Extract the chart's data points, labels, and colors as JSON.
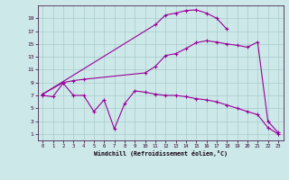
{
  "xlabel": "Windchill (Refroidissement éolien,°C)",
  "background_color": "#cce8e8",
  "grid_color": "#aacccc",
  "line_color": "#990099",
  "ylim": [
    0,
    21
  ],
  "xlim": [
    -0.5,
    23.5
  ],
  "yticks": [
    1,
    3,
    5,
    7,
    9,
    11,
    13,
    15,
    17,
    19
  ],
  "xticks": [
    0,
    1,
    2,
    3,
    4,
    5,
    6,
    7,
    8,
    9,
    10,
    11,
    12,
    13,
    14,
    15,
    16,
    17,
    18,
    19,
    20,
    21,
    22,
    23
  ],
  "c1_x": [
    0,
    1,
    2,
    3,
    4,
    5,
    6,
    7,
    8,
    9,
    10,
    11,
    12,
    13,
    14,
    15,
    16,
    17,
    18,
    19,
    20,
    21,
    22,
    23
  ],
  "c1_y": [
    7.0,
    6.8,
    8.9,
    7.0,
    7.0,
    4.5,
    6.3,
    1.8,
    5.7,
    7.7,
    7.5,
    7.2,
    7.0,
    7.0,
    6.8,
    6.5,
    6.3,
    6.0,
    5.5,
    5.0,
    4.5,
    4.0,
    2.0,
    1.0
  ],
  "c2_x": [
    0,
    2,
    3,
    4,
    10,
    11,
    12,
    13,
    14,
    15,
    16,
    17,
    18,
    19,
    20,
    21,
    22,
    23
  ],
  "c2_y": [
    7.2,
    9.0,
    9.3,
    9.5,
    10.5,
    11.5,
    13.2,
    13.5,
    14.3,
    15.2,
    15.5,
    15.3,
    15.0,
    14.8,
    14.5,
    15.3,
    3.0,
    1.2
  ],
  "c3_x": [
    0,
    11,
    12,
    13,
    14,
    15,
    16,
    17,
    18
  ],
  "c3_y": [
    7.2,
    18.0,
    19.5,
    19.8,
    20.2,
    20.3,
    19.8,
    19.0,
    17.3
  ]
}
